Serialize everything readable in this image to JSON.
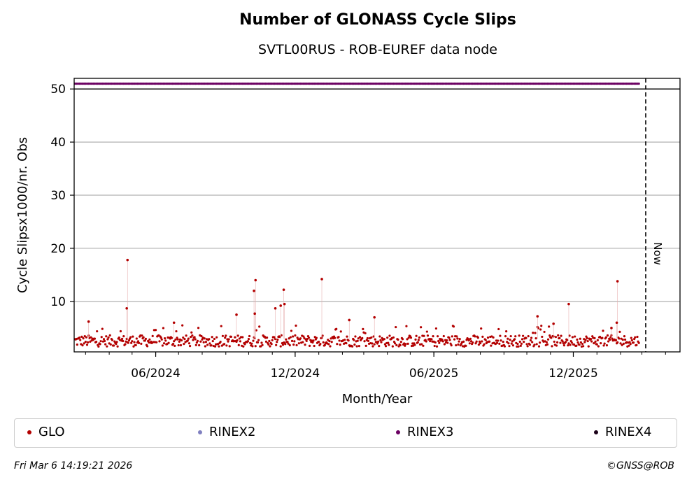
{
  "colors": {
    "GLO": "#b30000",
    "RINEX2": "#8080c0",
    "RINEX3": "#6b0062",
    "RINEX4": "#1a0018",
    "grid": "#b0b0b0"
  },
  "chart_data": {
    "type": "scatter",
    "title": "Number of GLONASS Cycle Slips",
    "subtitle": "SVTL00RUS - ROB-EUREF data node",
    "xlabel": "Month/Year",
    "ylabel": "Cycle Slipsx1000/nr. Obs",
    "x_ticks": [
      "06/2024",
      "12/2024",
      "06/2025",
      "12/2025"
    ],
    "y_ticks": [
      10,
      20,
      30,
      40,
      50
    ],
    "ylim": [
      0.5,
      52
    ],
    "xlim": [
      "2024-02-15",
      "2026-04-20"
    ],
    "grid": "horizontal",
    "now_label": "Now",
    "now_date": "2026-03-06",
    "series": [
      {
        "name": "GLO",
        "x_start": "2024-02-16",
        "x_end": "2026-02-25",
        "typical_range": [
          1.5,
          4.0
        ],
        "peaks": [
          {
            "x": "2024-04-25",
            "y": 17.8
          },
          {
            "x": "2024-04-24",
            "y": 8.7
          },
          {
            "x": "2024-03-05",
            "y": 6.2
          },
          {
            "x": "2024-06-25",
            "y": 6.0
          },
          {
            "x": "2024-09-15",
            "y": 7.5
          },
          {
            "x": "2024-10-10",
            "y": 14.0
          },
          {
            "x": "2024-10-08",
            "y": 12.0
          },
          {
            "x": "2024-10-09",
            "y": 7.7
          },
          {
            "x": "2024-11-05",
            "y": 8.7
          },
          {
            "x": "2024-11-12",
            "y": 9.2
          },
          {
            "x": "2024-11-16",
            "y": 12.2
          },
          {
            "x": "2024-11-17",
            "y": 9.5
          },
          {
            "x": "2025-01-05",
            "y": 14.2
          },
          {
            "x": "2025-02-10",
            "y": 6.5
          },
          {
            "x": "2025-03-15",
            "y": 7.0
          },
          {
            "x": "2025-10-15",
            "y": 7.2
          },
          {
            "x": "2025-11-05",
            "y": 5.8
          },
          {
            "x": "2025-11-25",
            "y": 9.5
          },
          {
            "x": "2026-01-20",
            "y": 5.0
          },
          {
            "x": "2026-01-28",
            "y": 13.8
          },
          {
            "x": "2026-01-27",
            "y": 6.0
          }
        ]
      },
      {
        "name": "RINEX3",
        "x_start": "2024-02-16",
        "x_end": "2026-02-25",
        "value": 51
      }
    ],
    "legend": [
      "GLO",
      "RINEX2",
      "RINEX3",
      "RINEX4"
    ],
    "legend_position": "bottom"
  },
  "footer": {
    "timestamp": "Fri Mar  6 14:19:21 2026",
    "credit": "©GNSS@ROB"
  }
}
